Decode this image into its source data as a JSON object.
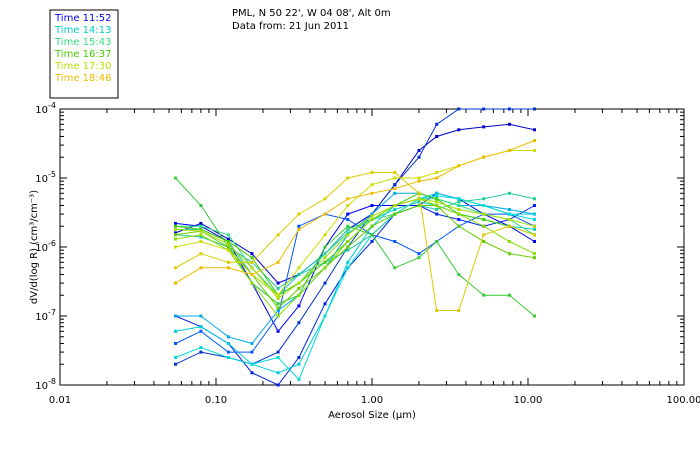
{
  "header": {
    "line1": "PML, N 50 22', W 04 08', Alt 0m",
    "line2": "Data from: 21 Jun 2011"
  },
  "legend": [
    {
      "label": "Time 11:52",
      "color": "#0000ff"
    },
    {
      "label": "Time 14:13",
      "color": "#00cccc"
    },
    {
      "label": "Time 15:43",
      "color": "#33dd88"
    },
    {
      "label": "Time 16:37",
      "color": "#44cc00"
    },
    {
      "label": "Time 17:30",
      "color": "#bbdd00"
    },
    {
      "label": "Time 18:46",
      "color": "#eebb00"
    }
  ],
  "chart_data": {
    "type": "line",
    "xlabel": "Aerosol Size (μm)",
    "ylabel": "dV/d(log R) (cm³/cm⁻³)",
    "x_scale": "log",
    "y_scale": "log",
    "xlim": [
      0.01,
      100
    ],
    "ylim": [
      1e-08,
      0.0001
    ],
    "x_ticks": [
      {
        "value": 0.01,
        "label": "0.01"
      },
      {
        "value": 0.1,
        "label": "0.10"
      },
      {
        "value": 1,
        "label": "1.00"
      },
      {
        "value": 10,
        "label": "10.00"
      },
      {
        "value": 100,
        "label": "100.00"
      }
    ],
    "y_ticks": [
      {
        "value": 1e-08,
        "exp": "-8"
      },
      {
        "value": 1e-07,
        "exp": "-7"
      },
      {
        "value": 1e-06,
        "exp": "-6"
      },
      {
        "value": 1e-05,
        "exp": "-5"
      },
      {
        "value": 0.0001,
        "exp": "-4"
      }
    ],
    "x": [
      0.055,
      0.08,
      0.12,
      0.17,
      0.25,
      0.34,
      0.5,
      0.7,
      1.0,
      1.4,
      2.0,
      2.6,
      3.6,
      5.2,
      7.6,
      11.0
    ],
    "series": [
      {
        "color": "#0000cc",
        "values": [
          1.6e-06,
          2.2e-06,
          1.3e-06,
          8e-07,
          3e-07,
          4e-07,
          8e-07,
          1.8e-06,
          3e-06,
          8e-06,
          2.5e-05,
          4e-05,
          5e-05,
          5.5e-05,
          6e-05,
          5e-05
        ]
      },
      {
        "color": "#0000ff",
        "values": [
          2.2e-06,
          2e-06,
          1.2e-06,
          3e-07,
          6e-08,
          1.4e-07,
          1e-06,
          3e-06,
          4e-06,
          4e-06,
          4e-06,
          6e-06,
          5e-06,
          3e-06,
          2e-06,
          1.2e-06
        ]
      },
      {
        "color": "#0022ee",
        "values": [
          1e-07,
          7e-08,
          4e-08,
          1.5e-08,
          1e-08,
          2.5e-08,
          1.5e-07,
          5e-07,
          1.2e-06,
          3e-06,
          4e-06,
          3e-06,
          2.5e-06,
          2e-06,
          2.5e-06,
          4e-06
        ]
      },
      {
        "color": "#0055ff",
        "values": [
          4e-08,
          6e-08,
          3e-08,
          3e-08,
          1e-07,
          2e-06,
          3e-06,
          2.5e-06,
          1.5e-06,
          1.2e-06,
          8e-07,
          1.2e-06,
          2e-06,
          3e-06,
          3e-06,
          2e-06
        ]
      },
      {
        "color": "#0033cc",
        "values": [
          2e-08,
          3e-08,
          2.5e-08,
          2e-08,
          3e-08,
          8e-08,
          3e-07,
          1e-06,
          3e-06,
          8e-06,
          2e-05,
          6e-05,
          0.0001,
          0.0001,
          0.0001,
          0.0001
        ]
      },
      {
        "color": "#00aaee",
        "values": [
          1e-07,
          1e-07,
          5e-08,
          4e-08,
          1.2e-07,
          2e-07,
          5e-07,
          1.5e-06,
          3e-06,
          6e-06,
          6e-06,
          5e-06,
          4e-06,
          4e-06,
          3.5e-06,
          3e-06
        ]
      },
      {
        "color": "#00ccdd",
        "values": [
          6e-08,
          7e-08,
          4e-08,
          2e-08,
          1.5e-08,
          2e-08,
          1e-07,
          6e-07,
          2e-06,
          4e-06,
          5e-06,
          6e-06,
          5e-06,
          4e-06,
          3e-06,
          3e-06
        ]
      },
      {
        "color": "#00dddd",
        "values": [
          2.5e-08,
          3.5e-08,
          2.5e-08,
          2e-08,
          2.5e-08,
          1.2e-08,
          1e-07,
          5e-07,
          1.5e-06,
          3e-06,
          5e-06,
          5.5e-06,
          5e-06,
          4e-06,
          3e-06,
          2.5e-06
        ]
      },
      {
        "color": "#11ccbb",
        "values": [
          1.8e-06,
          1.8e-06,
          1.2e-06,
          4e-07,
          2e-07,
          4e-07,
          8e-07,
          1.6e-06,
          2.5e-06,
          3.5e-06,
          4.5e-06,
          4e-06,
          3e-06,
          2.5e-06,
          2e-06,
          1.8e-06
        ]
      },
      {
        "color": "#22cc99",
        "values": [
          1.5e-06,
          1.4e-06,
          1e-06,
          6e-07,
          2.5e-07,
          4e-07,
          6e-07,
          9e-07,
          1.5e-06,
          3e-06,
          4e-06,
          3.5e-06,
          4.5e-06,
          5e-06,
          6e-06,
          5e-06
        ]
      },
      {
        "color": "#33dd88",
        "values": [
          2e-06,
          2e-06,
          1.5e-06,
          5e-07,
          2e-07,
          3e-07,
          8e-07,
          1.8e-06,
          2.5e-06,
          3e-06,
          5e-06,
          5e-06,
          4e-06,
          3e-06,
          2.5e-06,
          1.5e-06
        ]
      },
      {
        "color": "#33cc33",
        "values": [
          1e-05,
          4e-06,
          1e-06,
          3e-07,
          1.5e-07,
          2e-07,
          1e-06,
          2e-06,
          1.5e-06,
          5e-07,
          7e-07,
          1.2e-06,
          4e-07,
          2e-07,
          2e-07,
          1e-07
        ]
      },
      {
        "color": "#44cc00",
        "values": [
          2e-06,
          1.8e-06,
          1.2e-06,
          7e-07,
          2e-07,
          3e-07,
          6e-07,
          1.2e-06,
          2.5e-06,
          4e-06,
          6e-06,
          5e-06,
          3e-06,
          2.5e-06,
          2e-06,
          1.5e-06
        ]
      },
      {
        "color": "#66cc00",
        "values": [
          1.5e-06,
          1.7e-06,
          1e-06,
          4e-07,
          1.3e-07,
          2.5e-07,
          5e-07,
          1e-06,
          2e-06,
          3e-06,
          4e-06,
          4e-06,
          2e-06,
          1.2e-06,
          8e-07,
          7e-07
        ]
      },
      {
        "color": "#88dd00",
        "values": [
          1.3e-06,
          1.5e-06,
          9e-07,
          3e-07,
          1e-07,
          2e-07,
          5e-07,
          1.2e-06,
          2.5e-06,
          4e-06,
          5e-06,
          4e-06,
          3e-06,
          2e-06,
          1.2e-06,
          8e-07
        ]
      },
      {
        "color": "#aadd00",
        "values": [
          1.8e-06,
          1.7e-06,
          1.1e-06,
          5e-07,
          1.8e-07,
          3e-07,
          7e-07,
          1.5e-06,
          2.8e-06,
          4e-06,
          5e-06,
          4.5e-06,
          3.5e-06,
          3e-06,
          2.5e-06,
          2e-06
        ]
      },
      {
        "color": "#ccdd00",
        "values": [
          1e-06,
          1.2e-06,
          9e-07,
          4e-07,
          2e-07,
          5e-07,
          1.5e-06,
          4e-06,
          8e-06,
          1e-05,
          1e-05,
          1.2e-05,
          1.5e-05,
          2e-05,
          2.5e-05,
          2.5e-05
        ]
      },
      {
        "color": "#ddcc00",
        "values": [
          5e-07,
          8e-07,
          6e-07,
          6e-07,
          1.5e-06,
          3e-06,
          5e-06,
          1e-05,
          1.2e-05,
          1.2e-05,
          6e-06,
          1.2e-07,
          1.2e-07,
          1.5e-06,
          2e-06,
          1.5e-06
        ]
      },
      {
        "color": "#eebb00",
        "values": [
          3e-07,
          5e-07,
          5e-07,
          4e-07,
          6e-07,
          1.8e-06,
          3e-06,
          5e-06,
          6e-06,
          7e-06,
          9e-06,
          1e-05,
          1.5e-05,
          2e-05,
          2.5e-05,
          3.5e-05
        ]
      }
    ]
  }
}
